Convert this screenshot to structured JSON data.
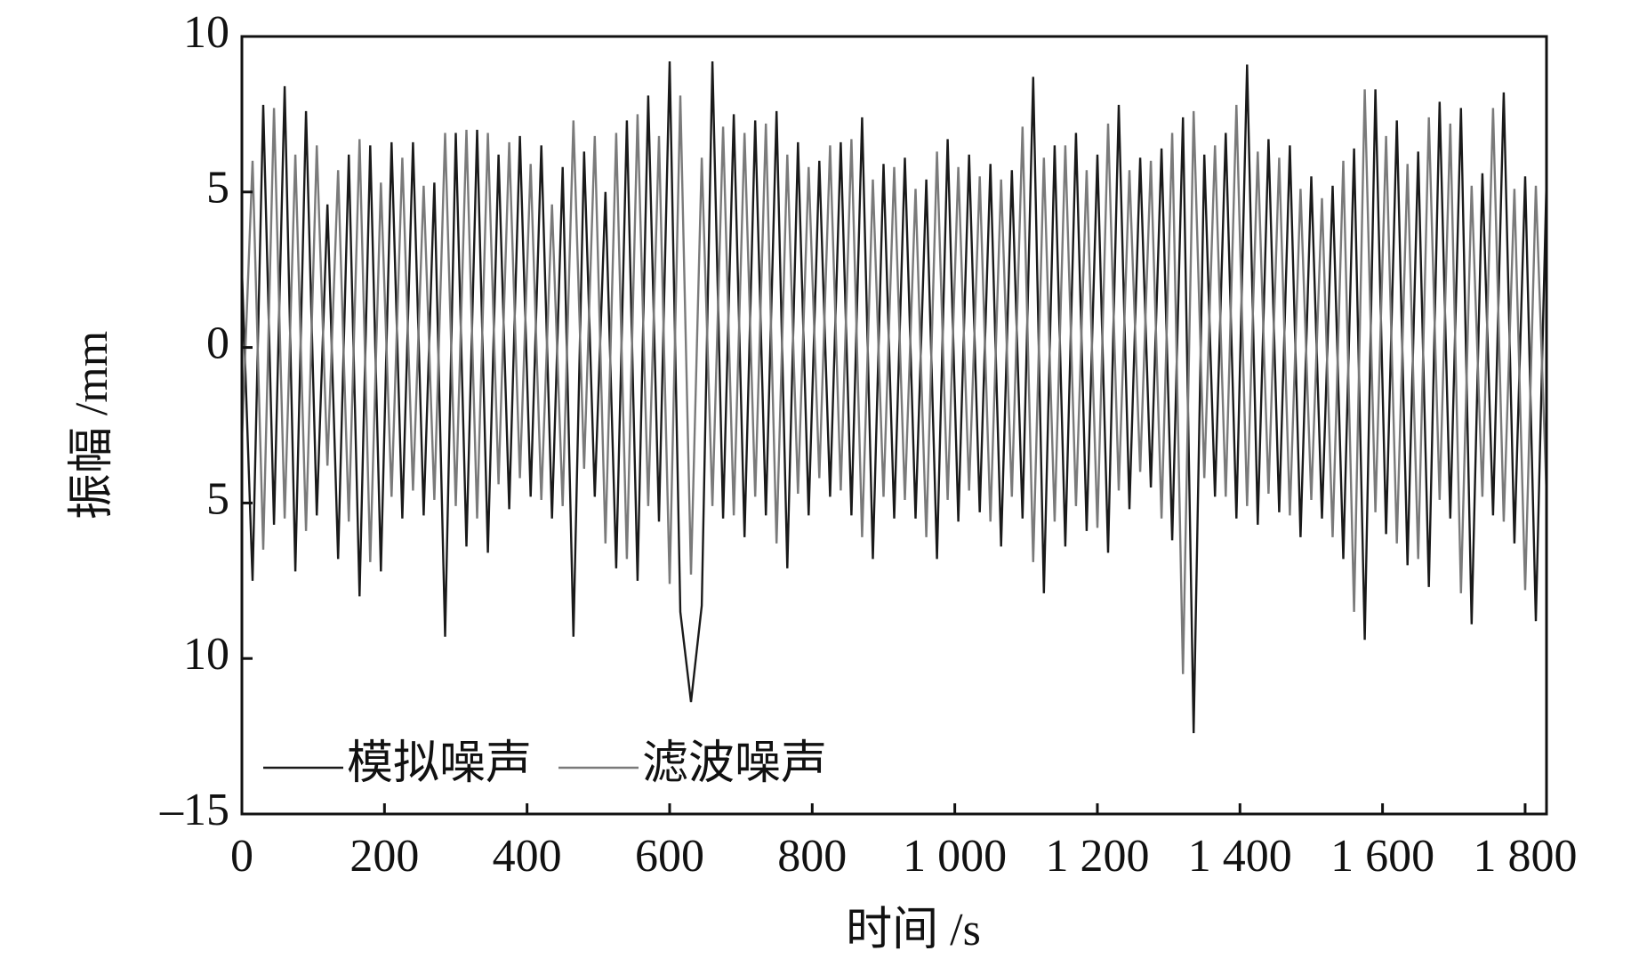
{
  "chart_data": {
    "type": "line",
    "xlabel": "时间 /s",
    "ylabel": "振幅 /mm",
    "xlim": [
      0,
      1830
    ],
    "ylim": [
      -15,
      10
    ],
    "xticks": [
      0,
      200,
      400,
      600,
      800,
      {
        "value": 1000,
        "label": "1 000"
      },
      {
        "value": 1200,
        "label": "1 200"
      },
      {
        "value": 1400,
        "label": "1 400"
      },
      {
        "value": 1600,
        "label": "1 600"
      },
      {
        "value": 1800,
        "label": "1 800"
      }
    ],
    "yticks": [
      10,
      5,
      0,
      {
        "value": -5,
        "label": "5"
      },
      {
        "value": -10,
        "label": "10"
      },
      {
        "value": -15,
        "label": "–15"
      }
    ],
    "legend": "lower left",
    "x": [
      0,
      15,
      30,
      45,
      60,
      75,
      90,
      105,
      120,
      135,
      150,
      165,
      180,
      195,
      210,
      225,
      240,
      255,
      270,
      285,
      300,
      315,
      330,
      345,
      360,
      375,
      390,
      405,
      420,
      435,
      450,
      465,
      480,
      495,
      510,
      525,
      540,
      555,
      570,
      585,
      600,
      615,
      630,
      645,
      660,
      675,
      690,
      705,
      720,
      735,
      750,
      765,
      780,
      795,
      810,
      825,
      840,
      855,
      870,
      885,
      900,
      915,
      930,
      945,
      960,
      975,
      990,
      1005,
      1020,
      1035,
      1050,
      1065,
      1080,
      1095,
      1110,
      1125,
      1140,
      1155,
      1170,
      1185,
      1200,
      1215,
      1230,
      1245,
      1260,
      1275,
      1290,
      1305,
      1320,
      1335,
      1350,
      1365,
      1380,
      1395,
      1410,
      1425,
      1440,
      1455,
      1470,
      1485,
      1500,
      1515,
      1530,
      1545,
      1560,
      1575,
      1590,
      1605,
      1620,
      1635,
      1650,
      1665,
      1680,
      1695,
      1710,
      1725,
      1740,
      1755,
      1770,
      1785,
      1800,
      1815,
      1830
    ],
    "series": [
      {
        "name": "模拟噪声",
        "color": "#1a1a1a",
        "values": [
          2.5,
          -7.5,
          7.8,
          -5.7,
          8.4,
          -7.2,
          7.6,
          -5.4,
          4.6,
          -6.8,
          6.2,
          -8,
          6.5,
          -7.2,
          6.6,
          -5.5,
          6.6,
          -5.4,
          5.3,
          -9.3,
          6.9,
          -6.4,
          7,
          -6.6,
          6.2,
          -5.2,
          6.8,
          -4.8,
          6.5,
          -5.5,
          5.8,
          -9.3,
          6.3,
          -4.8,
          5,
          -7.1,
          7.3,
          -7.5,
          8.1,
          -5.6,
          9.2,
          -8.5,
          -11.4,
          -8.3,
          9.2,
          -5.5,
          7.5,
          -6.1,
          7.3,
          -5.4,
          7.6,
          -7.1,
          6.6,
          -5.4,
          6,
          -4.8,
          6.6,
          -5.4,
          7.4,
          -6.8,
          5.9,
          -5.5,
          6.1,
          -5.5,
          5.4,
          -6.8,
          6.7,
          -5.6,
          6.2,
          -5.3,
          5.9,
          -6.4,
          5.7,
          -5.5,
          8.7,
          -7.9,
          6.5,
          -6.4,
          6.9,
          -5.9,
          6.2,
          -6.6,
          7.8,
          -5.2,
          6.1,
          -4.5,
          6.4,
          -6.2,
          7.4,
          -12.4,
          6.2,
          -4.8,
          6.9,
          -5.5,
          9.1,
          -5.7,
          6.7,
          -5.3,
          6.5,
          -6.1,
          5.5,
          -5.5,
          5.2,
          -6.8,
          6.4,
          -9.4,
          8.3,
          -6,
          7.3,
          -7,
          6.3,
          -7.7,
          7.9,
          -5.5,
          7.7,
          -8.9,
          5.6,
          -5.4,
          8.2,
          -6.3,
          5.5,
          -8.8,
          5.4
        ]
      },
      {
        "name": "滤波噪声",
        "color": "#7a7a7a",
        "values": [
          -3,
          6,
          -6.5,
          7.7,
          -5.5,
          6.2,
          -5.9,
          6.5,
          -3.8,
          5.7,
          -5.6,
          6.7,
          -6.9,
          5.3,
          -4.8,
          6.1,
          -4.6,
          5.2,
          -4.9,
          6.9,
          -5.1,
          7,
          -5.5,
          6.9,
          -4.4,
          6.6,
          -4.2,
          5.9,
          -4.9,
          4.6,
          -5.1,
          7.3,
          -3.9,
          6.8,
          -6.3,
          6.9,
          -6.8,
          7.5,
          -5.1,
          6.8,
          -7.6,
          8.1,
          -7.3,
          6.1,
          -5.1,
          7.1,
          -5.4,
          6.9,
          -4.8,
          7.2,
          -6.3,
          6.2,
          -4.7,
          5.8,
          -4.2,
          6.5,
          -4.6,
          6.7,
          -6.1,
          5.4,
          -4.8,
          5.8,
          -4.9,
          5.1,
          -6.1,
          6.3,
          -4.9,
          5.8,
          -4.6,
          5.5,
          -5.6,
          5.4,
          -4.8,
          7.1,
          -6.9,
          6.1,
          -5.6,
          6.5,
          -5.1,
          5.7,
          -5.8,
          7.2,
          -4.6,
          5.7,
          -4,
          6,
          -5.5,
          6.9,
          -10.5,
          7.6,
          -4.2,
          6.5,
          -4.8,
          7.8,
          -5.1,
          6.3,
          -4.7,
          6.1,
          -5.4,
          5.1,
          -4.9,
          4.8,
          -6.1,
          6,
          -8.5,
          8.3,
          -5.3,
          6.8,
          -6.3,
          5.9,
          -6.8,
          7.4,
          -4.9,
          7.2,
          -7.9,
          5.2,
          -4.8,
          7.7,
          -5.6,
          5.1,
          -7.8,
          5.2,
          -4.7
        ]
      }
    ]
  }
}
